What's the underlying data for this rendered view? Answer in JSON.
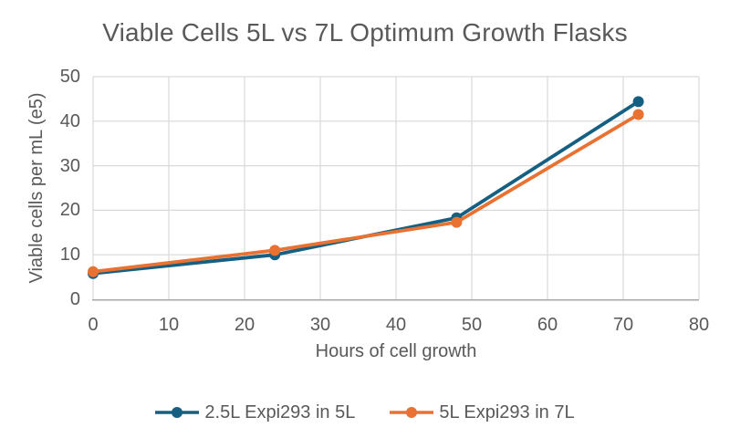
{
  "chart_data": {
    "type": "line",
    "title": "Viable Cells 5L vs 7L Optimum Growth Flasks",
    "xlabel": "Hours of cell growth",
    "ylabel": "Viable cells per mL (e5)",
    "xlim": [
      0,
      80
    ],
    "ylim": [
      0,
      50
    ],
    "x_ticks": [
      0,
      10,
      20,
      30,
      40,
      50,
      60,
      70,
      80
    ],
    "y_ticks": [
      0,
      10,
      20,
      30,
      40,
      50
    ],
    "grid": true,
    "legend_position": "bottom",
    "x": [
      0,
      24,
      48,
      72
    ],
    "series": [
      {
        "name": "2.5L Expi293 in 5L",
        "color": "#156082",
        "values": [
          5.8,
          10.0,
          18.3,
          44.4
        ]
      },
      {
        "name": "5L Expi293 in 7L",
        "color": "#E97132",
        "values": [
          6.2,
          11.0,
          17.3,
          41.5
        ]
      }
    ]
  },
  "colors": {
    "text": "#595959",
    "gridline": "#D9D9D9",
    "axis_line": "#A6A6A6",
    "background": "#FFFFFF"
  }
}
